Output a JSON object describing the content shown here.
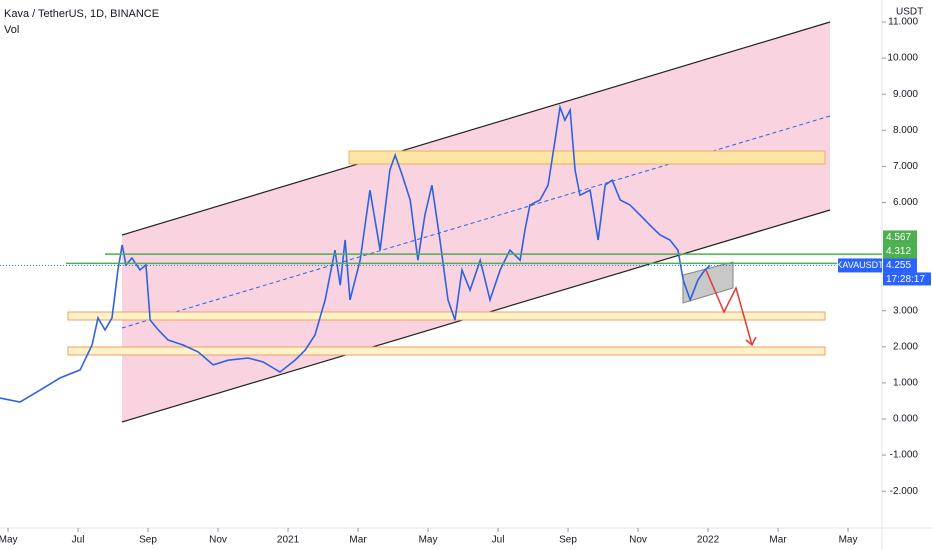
{
  "chart_data": {
    "type": "line",
    "title": "Kava / TetherUS, 1D, BINANCE",
    "subtitle": "Vol",
    "y_axis_label": "USDT",
    "symbol": "KAVAUSDT",
    "countdown": "17:28:17",
    "xlim": [
      -0.23,
      24.97
    ],
    "ylim": [
      -3.02,
      11.61
    ],
    "xticks": [
      {
        "value": 0,
        "label": "May"
      },
      {
        "value": 2,
        "label": "Jul"
      },
      {
        "value": 4,
        "label": "Sep"
      },
      {
        "value": 6,
        "label": "Nov"
      },
      {
        "value": 8,
        "label": "2021"
      },
      {
        "value": 10,
        "label": "Mar"
      },
      {
        "value": 12,
        "label": "May"
      },
      {
        "value": 14,
        "label": "Jul"
      },
      {
        "value": 16,
        "label": "Sep"
      },
      {
        "value": 18,
        "label": "Nov"
      },
      {
        "value": 20,
        "label": "2022"
      },
      {
        "value": 22,
        "label": "Mar"
      },
      {
        "value": 24,
        "label": "May"
      }
    ],
    "yticks": [
      {
        "value": 11,
        "label": "11.000"
      },
      {
        "value": 10,
        "label": "10.000"
      },
      {
        "value": 9,
        "label": "9.000"
      },
      {
        "value": 8,
        "label": "8.000"
      },
      {
        "value": 7,
        "label": "7.000"
      },
      {
        "value": 6,
        "label": "6.000"
      },
      {
        "value": 3,
        "label": "3.000"
      },
      {
        "value": 2,
        "label": "2.000"
      },
      {
        "value": 1,
        "label": "1.000"
      },
      {
        "value": 0,
        "label": "0.000"
      },
      {
        "value": -1,
        "label": "-1.000"
      },
      {
        "value": -2,
        "label": "-2.000"
      }
    ],
    "x": [
      -0.23,
      0.34,
      0.91,
      1.49,
      2.06,
      2.4,
      2.57,
      2.77,
      2.97,
      3.14,
      3.26,
      3.37,
      3.54,
      3.77,
      3.94,
      4.06,
      4.29,
      4.57,
      5.0,
      5.43,
      5.86,
      6.29,
      6.86,
      7.29,
      7.77,
      8.2,
      8.49,
      8.77,
      9.06,
      9.34,
      9.49,
      9.63,
      9.77,
      10.06,
      10.34,
      10.63,
      10.91,
      11.06,
      11.26,
      11.49,
      11.71,
      11.91,
      12.11,
      12.34,
      12.57,
      12.77,
      12.97,
      13.2,
      13.49,
      13.77,
      14.06,
      14.34,
      14.63,
      14.77,
      14.91,
      15.2,
      15.43,
      15.63,
      15.77,
      15.91,
      16.06,
      16.2,
      16.34,
      16.63,
      16.86,
      17.06,
      17.26,
      17.49,
      17.77,
      18.06,
      18.34,
      18.63,
      18.91,
      19.14,
      19.29,
      19.49,
      19.71,
      19.91,
      20.06
    ],
    "series": [
      {
        "name": "KAVAUSDT",
        "color": "#2f62e0",
        "values": [
          0.58,
          0.47,
          0.8,
          1.14,
          1.36,
          2.05,
          2.8,
          2.47,
          2.8,
          4.13,
          4.82,
          4.27,
          4.46,
          4.13,
          4.27,
          2.74,
          2.47,
          2.19,
          2.05,
          1.86,
          1.5,
          1.63,
          1.69,
          1.58,
          1.3,
          1.63,
          1.91,
          2.33,
          3.3,
          4.68,
          3.71,
          4.96,
          3.3,
          4.4,
          6.34,
          4.68,
          6.9,
          7.31,
          6.76,
          6.07,
          4.4,
          5.65,
          6.48,
          4.96,
          3.3,
          2.74,
          4.13,
          3.57,
          4.4,
          3.3,
          4.13,
          4.68,
          4.4,
          5.24,
          5.93,
          6.07,
          6.48,
          7.73,
          8.64,
          8.28,
          8.56,
          6.9,
          6.2,
          6.34,
          4.96,
          6.48,
          6.62,
          6.07,
          5.93,
          5.65,
          5.37,
          5.1,
          4.96,
          4.68,
          3.85,
          3.3,
          3.85,
          4.13,
          4.255
        ]
      }
    ],
    "levels": [
      {
        "value": 4.567,
        "color": "#4caf50"
      },
      {
        "value": 4.312,
        "color": "#4caf50"
      },
      {
        "value": 4.255,
        "color": "#2962ff"
      }
    ]
  }
}
